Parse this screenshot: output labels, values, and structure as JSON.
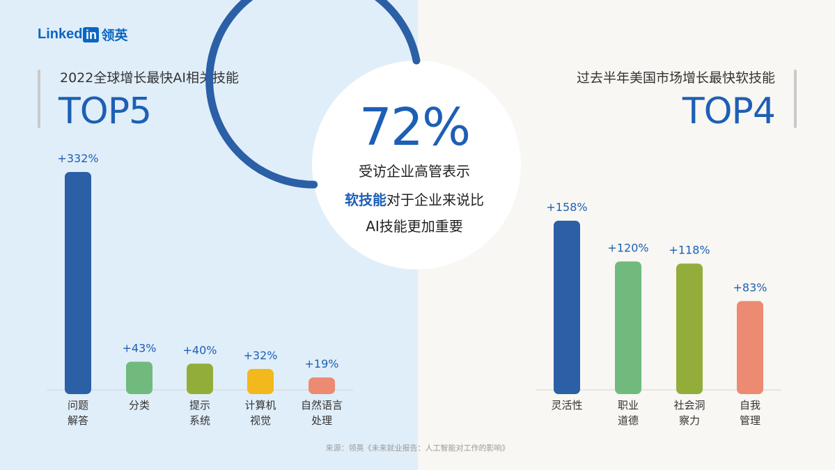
{
  "logo": {
    "wordmark": "Linked",
    "in_badge": "in",
    "cn": "领英"
  },
  "left": {
    "subtitle": "2022全球增长最快AI相关技能",
    "title": "TOP5"
  },
  "right": {
    "subtitle": "过去半年美国市场增长最快软技能",
    "title": "TOP4"
  },
  "center": {
    "percent": "72%",
    "fraction": 0.72,
    "line1": "受访企业高管表示",
    "line2_bold": "软技能",
    "line2_rest": "对于企业来说比",
    "line3": "AI技能更加重要"
  },
  "colors": {
    "primary": "#2b5fa6",
    "title_blue": "#1d5fb5",
    "green": "#70ba7e",
    "olive": "#93ad3b",
    "yellow": "#f2b81c",
    "salmon": "#ec8a72"
  },
  "chart_data": [
    {
      "type": "bar",
      "categories": [
        [
          "问题",
          "解答"
        ],
        [
          "分类"
        ],
        [
          "提示",
          "系统"
        ],
        [
          "计算机",
          "视觉"
        ],
        [
          "自然语言",
          "处理"
        ]
      ],
      "values": [
        332,
        43,
        40,
        32,
        19
      ],
      "value_labels": [
        "+332%",
        "+43%",
        "+40%",
        "+32%",
        "+19%"
      ],
      "bar_colors": [
        "#2b5fa6",
        "#70ba7e",
        "#93ad3b",
        "#f2b81c",
        "#ec8a72"
      ],
      "ylim": [
        0,
        332
      ],
      "grid": false
    },
    {
      "type": "bar",
      "categories": [
        [
          "灵活性"
        ],
        [
          "职业",
          "道德"
        ],
        [
          "社会洞",
          "察力"
        ],
        [
          "自我",
          "管理"
        ]
      ],
      "values": [
        158,
        120,
        118,
        83
      ],
      "value_labels": [
        "+158%",
        "+120%",
        "+118%",
        "+83%"
      ],
      "bar_colors": [
        "#2b5fa6",
        "#70ba7e",
        "#93ad3b",
        "#ec8a72"
      ],
      "ylim": [
        0,
        158
      ],
      "grid": false
    }
  ],
  "source": "来源：领英《未来就业报告：人工智能对工作的影响》"
}
